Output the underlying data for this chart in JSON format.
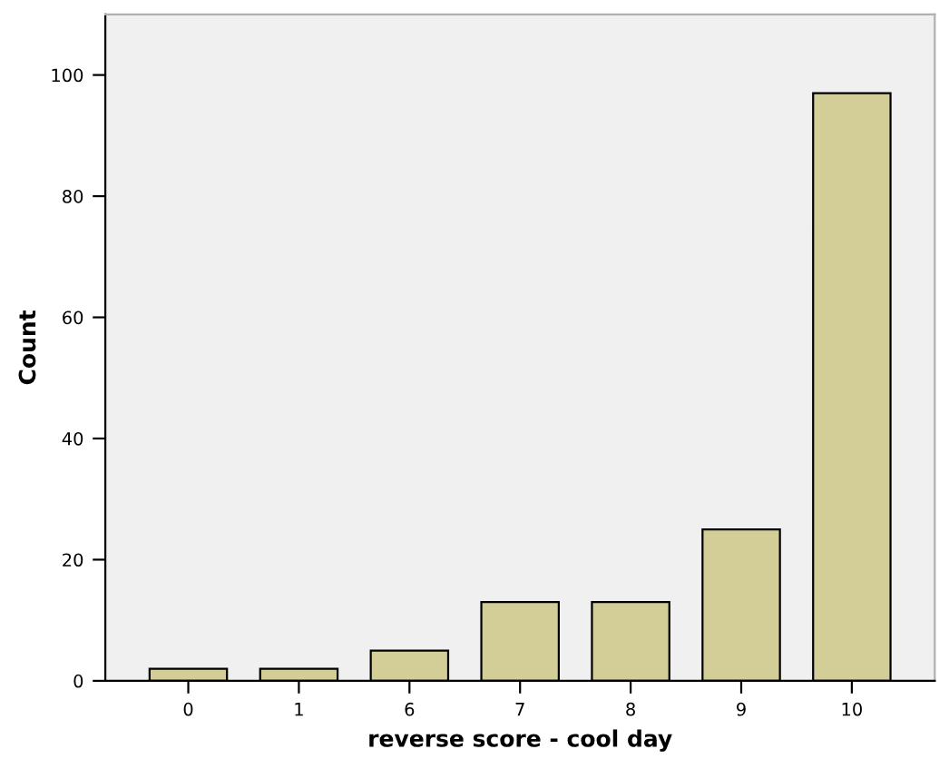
{
  "chart_data": {
    "type": "bar",
    "xlabel": "reverse score - cool day",
    "ylabel": "Count",
    "categories": [
      "0",
      "1",
      "6",
      "7",
      "8",
      "9",
      "10"
    ],
    "values": [
      2,
      2,
      5,
      13,
      13,
      25,
      97
    ],
    "color": "#d3ce97",
    "ylim": [
      0,
      110
    ],
    "yticks": [
      0,
      20,
      40,
      60,
      80,
      100
    ],
    "grid": false
  }
}
